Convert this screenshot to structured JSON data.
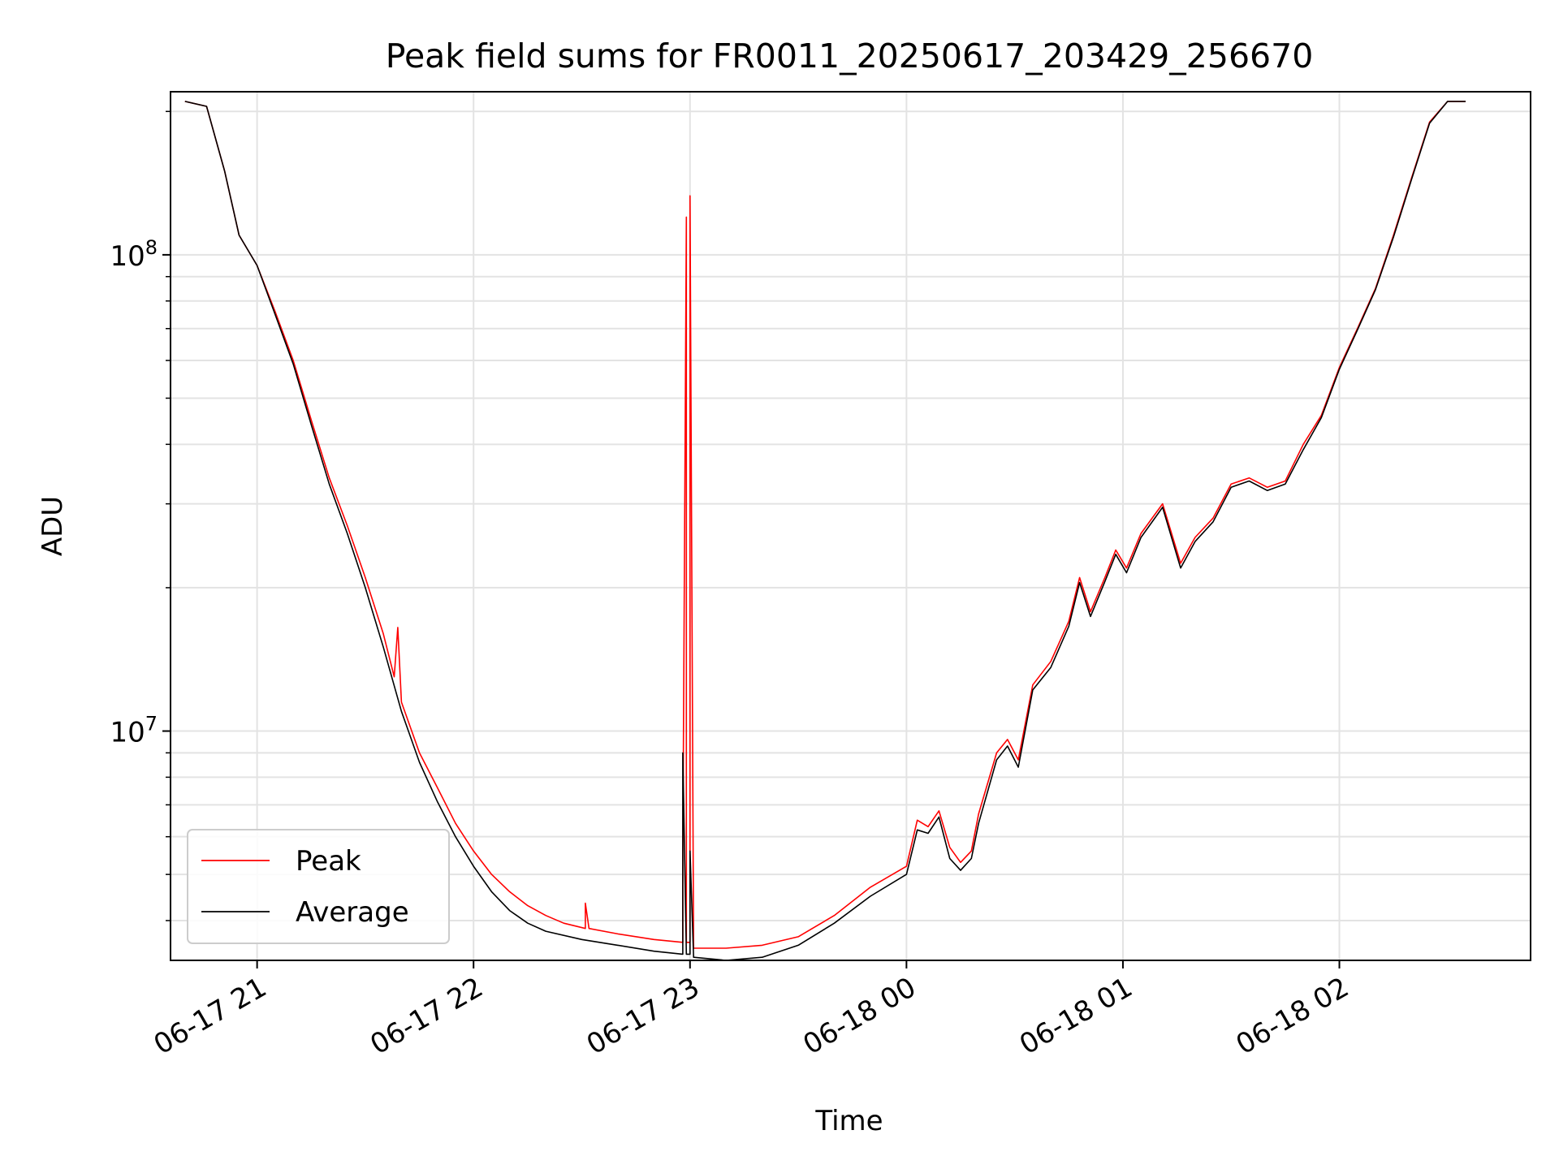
{
  "chart_data": {
    "type": "line",
    "title": "Peak field sums for FR0011_20250617_203429_256670",
    "xlabel": "Time",
    "ylabel": "ADU",
    "yscale": "log",
    "ylim": [
      3300000,
      220000000
    ],
    "xlim": [
      "2025-06-17 20:36",
      "2025-06-18 02:53"
    ],
    "grid": true,
    "legend_position": "lower-left",
    "x_ticks": [
      {
        "t": "2025-06-17 21:00",
        "label": "06-17 21"
      },
      {
        "t": "2025-06-17 22:00",
        "label": "06-17 22"
      },
      {
        "t": "2025-06-17 23:00",
        "label": "06-17 23"
      },
      {
        "t": "2025-06-18 00:00",
        "label": "06-18 00"
      },
      {
        "t": "2025-06-18 01:00",
        "label": "06-18 01"
      },
      {
        "t": "2025-06-18 02:00",
        "label": "06-18 02"
      }
    ],
    "y_ticks": [
      {
        "value": 10000000,
        "base": "10",
        "exp": "7"
      },
      {
        "value": 100000000,
        "base": "10",
        "exp": "8"
      }
    ],
    "series": [
      {
        "name": "Peak",
        "color": "#ff0000",
        "points": [
          [
            "2025-06-17 20:40",
            210000000
          ],
          [
            "2025-06-17 20:46",
            205000000
          ],
          [
            "2025-06-17 20:51",
            150000000
          ],
          [
            "2025-06-17 20:55",
            110000000
          ],
          [
            "2025-06-17 21:00",
            95000000
          ],
          [
            "2025-06-17 21:05",
            76000000
          ],
          [
            "2025-06-17 21:10",
            60000000
          ],
          [
            "2025-06-17 21:15",
            45000000
          ],
          [
            "2025-06-17 21:20",
            34000000
          ],
          [
            "2025-06-17 21:25",
            27000000
          ],
          [
            "2025-06-17 21:30",
            21000000
          ],
          [
            "2025-06-17 21:35",
            16000000
          ],
          [
            "2025-06-17 21:38",
            13000000
          ],
          [
            "2025-06-17 21:39",
            16500000
          ],
          [
            "2025-06-17 21:40",
            11500000
          ],
          [
            "2025-06-17 21:45",
            9000000
          ],
          [
            "2025-06-17 21:50",
            7600000
          ],
          [
            "2025-06-17 21:55",
            6400000
          ],
          [
            "2025-06-17 22:00",
            5600000
          ],
          [
            "2025-06-17 22:05",
            5000000
          ],
          [
            "2025-06-17 22:10",
            4600000
          ],
          [
            "2025-06-17 22:15",
            4300000
          ],
          [
            "2025-06-17 22:20",
            4100000
          ],
          [
            "2025-06-17 22:25",
            3950000
          ],
          [
            "2025-06-17 22:31",
            3850000
          ],
          [
            "2025-06-17 22:31",
            4350000
          ],
          [
            "2025-06-17 22:32",
            3850000
          ],
          [
            "2025-06-17 22:40",
            3750000
          ],
          [
            "2025-06-17 22:50",
            3650000
          ],
          [
            "2025-06-17 22:58",
            3600000
          ],
          [
            "2025-06-17 22:58",
            5500000
          ],
          [
            "2025-06-17 22:59",
            120000000
          ],
          [
            "2025-06-17 22:59",
            3600000
          ],
          [
            "2025-06-17 23:00",
            3600000
          ],
          [
            "2025-06-17 23:00",
            133000000
          ],
          [
            "2025-06-17 23:01",
            3500000
          ],
          [
            "2025-06-17 23:10",
            3500000
          ],
          [
            "2025-06-17 23:20",
            3550000
          ],
          [
            "2025-06-17 23:30",
            3700000
          ],
          [
            "2025-06-17 23:40",
            4100000
          ],
          [
            "2025-06-17 23:50",
            4700000
          ],
          [
            "2025-06-18 00:00",
            5200000
          ],
          [
            "2025-06-18 00:03",
            6500000
          ],
          [
            "2025-06-18 00:06",
            6300000
          ],
          [
            "2025-06-18 00:09",
            6800000
          ],
          [
            "2025-06-18 00:12",
            5700000
          ],
          [
            "2025-06-18 00:15",
            5300000
          ],
          [
            "2025-06-18 00:18",
            5600000
          ],
          [
            "2025-06-18 00:20",
            6700000
          ],
          [
            "2025-06-18 00:25",
            9000000
          ],
          [
            "2025-06-18 00:28",
            9600000
          ],
          [
            "2025-06-18 00:31",
            8700000
          ],
          [
            "2025-06-18 00:35",
            12500000
          ],
          [
            "2025-06-18 00:40",
            14000000
          ],
          [
            "2025-06-18 00:45",
            17000000
          ],
          [
            "2025-06-18 00:48",
            21000000
          ],
          [
            "2025-06-18 00:51",
            17800000
          ],
          [
            "2025-06-18 00:55",
            21000000
          ],
          [
            "2025-06-18 00:58",
            24000000
          ],
          [
            "2025-06-18 01:01",
            22000000
          ],
          [
            "2025-06-18 01:05",
            26000000
          ],
          [
            "2025-06-18 01:11",
            30000000
          ],
          [
            "2025-06-18 01:16",
            22500000
          ],
          [
            "2025-06-18 01:20",
            25500000
          ],
          [
            "2025-06-18 01:25",
            28000000
          ],
          [
            "2025-06-18 01:30",
            33000000
          ],
          [
            "2025-06-18 01:35",
            34000000
          ],
          [
            "2025-06-18 01:40",
            32500000
          ],
          [
            "2025-06-18 01:45",
            33500000
          ],
          [
            "2025-06-18 01:50",
            40000000
          ],
          [
            "2025-06-18 01:55",
            46000000
          ],
          [
            "2025-06-18 02:00",
            58000000
          ],
          [
            "2025-06-18 02:05",
            70000000
          ],
          [
            "2025-06-18 02:10",
            85000000
          ],
          [
            "2025-06-18 02:15",
            110000000
          ],
          [
            "2025-06-18 02:20",
            145000000
          ],
          [
            "2025-06-18 02:25",
            190000000
          ],
          [
            "2025-06-18 02:30",
            210000000
          ],
          [
            "2025-06-18 02:35",
            210000000
          ]
        ]
      },
      {
        "name": "Average",
        "color": "#000000",
        "points": [
          [
            "2025-06-17 20:40",
            210000000
          ],
          [
            "2025-06-17 20:46",
            205000000
          ],
          [
            "2025-06-17 20:51",
            150000000
          ],
          [
            "2025-06-17 20:55",
            110000000
          ],
          [
            "2025-06-17 21:00",
            95000000
          ],
          [
            "2025-06-17 21:05",
            75000000
          ],
          [
            "2025-06-17 21:10",
            59000000
          ],
          [
            "2025-06-17 21:15",
            44000000
          ],
          [
            "2025-06-17 21:20",
            33000000
          ],
          [
            "2025-06-17 21:25",
            26000000
          ],
          [
            "2025-06-17 21:30",
            20000000
          ],
          [
            "2025-06-17 21:35",
            15000000
          ],
          [
            "2025-06-17 21:40",
            11000000
          ],
          [
            "2025-06-17 21:45",
            8600000
          ],
          [
            "2025-06-17 21:50",
            7100000
          ],
          [
            "2025-06-17 21:55",
            6000000
          ],
          [
            "2025-06-17 22:00",
            5200000
          ],
          [
            "2025-06-17 22:05",
            4600000
          ],
          [
            "2025-06-17 22:10",
            4200000
          ],
          [
            "2025-06-17 22:15",
            3950000
          ],
          [
            "2025-06-17 22:20",
            3800000
          ],
          [
            "2025-06-17 22:30",
            3650000
          ],
          [
            "2025-06-17 22:40",
            3550000
          ],
          [
            "2025-06-17 22:50",
            3450000
          ],
          [
            "2025-06-17 22:58",
            3400000
          ],
          [
            "2025-06-17 22:58",
            9000000
          ],
          [
            "2025-06-17 22:59",
            3400000
          ],
          [
            "2025-06-17 23:00",
            3400000
          ],
          [
            "2025-06-17 23:00",
            5600000
          ],
          [
            "2025-06-17 23:01",
            3350000
          ],
          [
            "2025-06-17 23:10",
            3300000
          ],
          [
            "2025-06-17 23:20",
            3350000
          ],
          [
            "2025-06-17 23:30",
            3550000
          ],
          [
            "2025-06-17 23:40",
            3950000
          ],
          [
            "2025-06-17 23:50",
            4500000
          ],
          [
            "2025-06-18 00:00",
            5000000
          ],
          [
            "2025-06-18 00:03",
            6200000
          ],
          [
            "2025-06-18 00:06",
            6100000
          ],
          [
            "2025-06-18 00:09",
            6600000
          ],
          [
            "2025-06-18 00:12",
            5400000
          ],
          [
            "2025-06-18 00:15",
            5100000
          ],
          [
            "2025-06-18 00:18",
            5400000
          ],
          [
            "2025-06-18 00:20",
            6400000
          ],
          [
            "2025-06-18 00:25",
            8700000
          ],
          [
            "2025-06-18 00:28",
            9300000
          ],
          [
            "2025-06-18 00:31",
            8400000
          ],
          [
            "2025-06-18 00:35",
            12200000
          ],
          [
            "2025-06-18 00:40",
            13600000
          ],
          [
            "2025-06-18 00:45",
            16600000
          ],
          [
            "2025-06-18 00:48",
            20500000
          ],
          [
            "2025-06-18 00:51",
            17400000
          ],
          [
            "2025-06-18 00:55",
            20600000
          ],
          [
            "2025-06-18 00:58",
            23500000
          ],
          [
            "2025-06-18 01:01",
            21500000
          ],
          [
            "2025-06-18 01:05",
            25500000
          ],
          [
            "2025-06-18 01:11",
            29500000
          ],
          [
            "2025-06-18 01:16",
            22000000
          ],
          [
            "2025-06-18 01:20",
            25000000
          ],
          [
            "2025-06-18 01:25",
            27500000
          ],
          [
            "2025-06-18 01:30",
            32500000
          ],
          [
            "2025-06-18 01:35",
            33500000
          ],
          [
            "2025-06-18 01:40",
            32000000
          ],
          [
            "2025-06-18 01:45",
            33000000
          ],
          [
            "2025-06-18 01:50",
            39000000
          ],
          [
            "2025-06-18 01:55",
            45500000
          ],
          [
            "2025-06-18 02:00",
            57500000
          ],
          [
            "2025-06-18 02:05",
            69500000
          ],
          [
            "2025-06-18 02:10",
            84500000
          ],
          [
            "2025-06-18 02:15",
            109000000
          ],
          [
            "2025-06-18 02:20",
            144000000
          ],
          [
            "2025-06-18 02:25",
            189000000
          ],
          [
            "2025-06-18 02:30",
            210000000
          ],
          [
            "2025-06-18 02:35",
            210000000
          ]
        ]
      }
    ]
  }
}
